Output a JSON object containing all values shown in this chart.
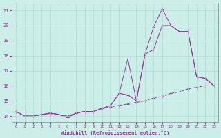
{
  "xlabel": "Windchill (Refroidissement éolien,°C)",
  "background_color": "#cceee8",
  "grid_color": "#aaddcc",
  "line_color": "#993399",
  "x_ticks": [
    0,
    1,
    2,
    3,
    4,
    5,
    6,
    7,
    8,
    9,
    10,
    11,
    12,
    13,
    14,
    15,
    16,
    17,
    18,
    19,
    20,
    21,
    22,
    23
  ],
  "ylim": [
    13.6,
    21.5
  ],
  "xlim": [
    -0.5,
    23.5
  ],
  "yticks": [
    14,
    15,
    16,
    17,
    18,
    19,
    20,
    21
  ],
  "line1_x": [
    0,
    1,
    2,
    3,
    4,
    5,
    6,
    7,
    8,
    9,
    10,
    11,
    12,
    13,
    14,
    15,
    16,
    17,
    18,
    19,
    20,
    21,
    22,
    23
  ],
  "line1_y": [
    14.3,
    14.0,
    14.0,
    14.1,
    14.2,
    14.1,
    13.9,
    14.2,
    14.3,
    14.3,
    14.5,
    14.7,
    15.5,
    17.8,
    15.0,
    18.1,
    19.9,
    21.1,
    20.0,
    19.6,
    19.6,
    16.6,
    16.5,
    16.0
  ],
  "line2_x": [
    0,
    1,
    2,
    3,
    4,
    5,
    6,
    7,
    8,
    9,
    10,
    11,
    12,
    13,
    14,
    15,
    16,
    17,
    18,
    19,
    20,
    21,
    22,
    23
  ],
  "line2_y": [
    14.3,
    14.0,
    14.0,
    14.1,
    14.2,
    14.1,
    13.9,
    14.2,
    14.3,
    14.3,
    14.5,
    14.7,
    15.5,
    15.4,
    15.0,
    18.1,
    18.4,
    20.0,
    20.0,
    19.6,
    19.6,
    16.6,
    16.5,
    16.0
  ],
  "line3_x": [
    0,
    1,
    2,
    3,
    4,
    5,
    6,
    7,
    8,
    9,
    10,
    11,
    12,
    13,
    14,
    15,
    16,
    17,
    18,
    19,
    20,
    21,
    22,
    23
  ],
  "line3_y": [
    14.3,
    14.0,
    14.0,
    14.1,
    14.1,
    14.1,
    14.0,
    14.2,
    14.3,
    14.3,
    14.5,
    14.6,
    14.7,
    14.8,
    14.9,
    15.0,
    15.2,
    15.3,
    15.5,
    15.6,
    15.8,
    15.9,
    16.0,
    16.0
  ]
}
